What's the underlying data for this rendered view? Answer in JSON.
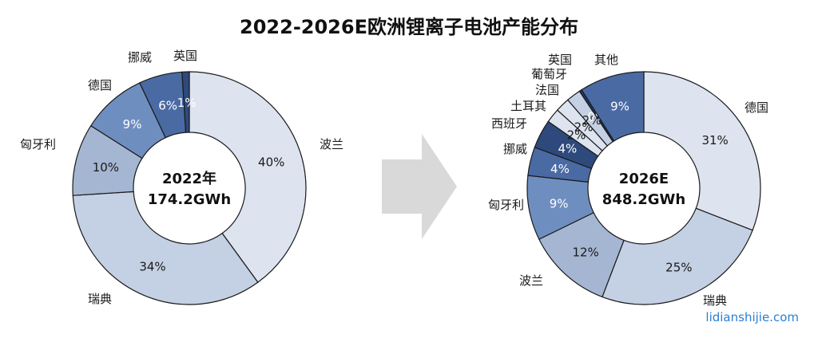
{
  "title": "2022-2026E欧洲锂离子电池产能分布",
  "watermark": "lidianshijie.com",
  "colors": {
    "arrow": "#d9d9d9",
    "stroke": "#1a1a1a",
    "dark_label": "#1a1a1a",
    "light_label": "#ffffff"
  },
  "chart_data": [
    {
      "type": "pie",
      "subtype": "donut",
      "center_label": [
        "2022年",
        "174.2GWh"
      ],
      "slices": [
        {
          "name": "波兰",
          "value": 40,
          "label": "40%",
          "color": "#dde3ef"
        },
        {
          "name": "瑞典",
          "value": 34,
          "label": "34%",
          "color": "#c4d0e3"
        },
        {
          "name": "匈牙利",
          "value": 10,
          "label": "10%",
          "color": "#a5b6d3"
        },
        {
          "name": "德国",
          "value": 9,
          "label": "9%",
          "color": "#6f8ec0"
        },
        {
          "name": "挪威",
          "value": 6,
          "label": "6%",
          "color": "#4a6aa3"
        },
        {
          "name": "英国",
          "value": 1,
          "label": "1%",
          "color": "#2e4a7d"
        }
      ]
    },
    {
      "type": "pie",
      "subtype": "donut",
      "center_label": [
        "2026E",
        "848.2GWh"
      ],
      "slices": [
        {
          "name": "德国",
          "value": 31,
          "label": "31%",
          "color": "#dde3ef"
        },
        {
          "name": "瑞典",
          "value": 25,
          "label": "25%",
          "color": "#c4d0e3"
        },
        {
          "name": "波兰",
          "value": 12,
          "label": "12%",
          "color": "#a5b6d3"
        },
        {
          "name": "匈牙利",
          "value": 9,
          "label": "9%",
          "color": "#6f8ec0"
        },
        {
          "name": "挪威",
          "value": 4,
          "label": "4%",
          "color": "#4a6aa3"
        },
        {
          "name": "西班牙",
          "value": 4,
          "label": "4%",
          "color": "#2e4a7d"
        },
        {
          "name": "土耳其",
          "value": 2,
          "label": "2%",
          "color": "#dde3ef"
        },
        {
          "name": "法国",
          "value": 2,
          "label": "2%",
          "color": "#dde3ef"
        },
        {
          "name": "葡萄牙",
          "value": 2,
          "label": "2%",
          "color": "#c4d0e3"
        },
        {
          "name": "英国",
          "value": 0,
          "label": "0%",
          "color": "#1f3a6e"
        },
        {
          "name": "其他",
          "value": 9,
          "label": "9%",
          "color": "#4a6aa3"
        }
      ]
    }
  ]
}
